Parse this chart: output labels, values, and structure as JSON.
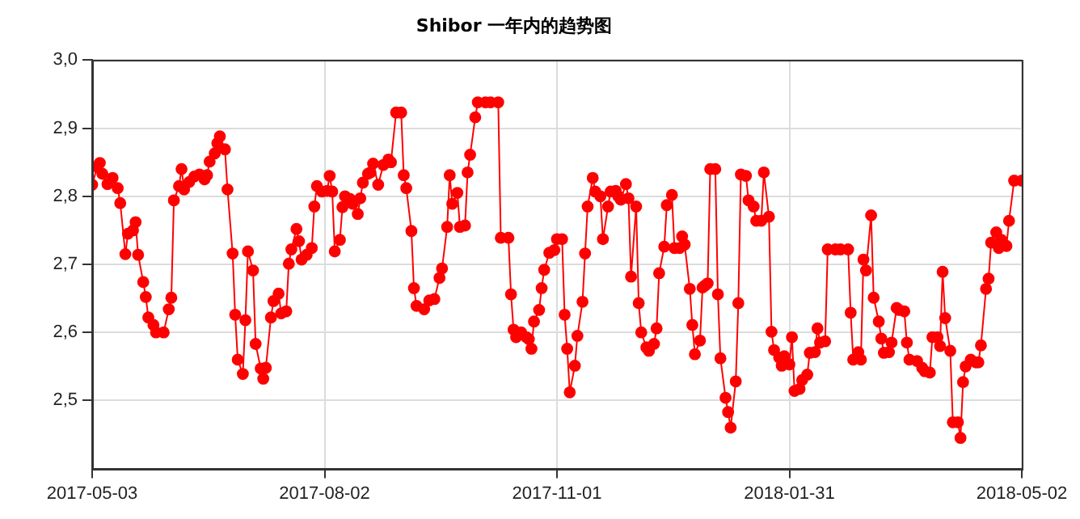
{
  "chart_data": {
    "type": "line",
    "title": "Shibor 一年内的趋势图",
    "x": [
      "2017-05-03",
      "2017-05-05",
      "2017-05-06",
      "2017-05-07",
      "2017-05-09",
      "2017-05-11",
      "2017-05-13",
      "2017-05-14",
      "2017-05-16",
      "2017-05-17",
      "2017-05-19",
      "2017-05-20",
      "2017-05-21",
      "2017-05-23",
      "2017-05-24",
      "2017-05-25",
      "2017-05-27",
      "2017-05-28",
      "2017-05-31",
      "2017-06-02",
      "2017-06-03",
      "2017-06-04",
      "2017-06-06",
      "2017-06-07",
      "2017-06-08",
      "2017-06-10",
      "2017-06-12",
      "2017-06-14",
      "2017-06-16",
      "2017-06-17",
      "2017-06-18",
      "2017-06-20",
      "2017-06-21",
      "2017-06-22",
      "2017-06-24",
      "2017-06-25",
      "2017-06-27",
      "2017-06-28",
      "2017-06-29",
      "2017-07-01",
      "2017-07-02",
      "2017-07-03",
      "2017-07-05",
      "2017-07-06",
      "2017-07-08",
      "2017-07-09",
      "2017-07-10",
      "2017-07-12",
      "2017-07-13",
      "2017-07-15",
      "2017-07-16",
      "2017-07-18",
      "2017-07-19",
      "2017-07-20",
      "2017-07-22",
      "2017-07-23",
      "2017-07-24",
      "2017-07-26",
      "2017-07-28",
      "2017-07-29",
      "2017-07-30",
      "2017-08-01",
      "2017-08-03",
      "2017-08-04",
      "2017-08-05",
      "2017-08-06",
      "2017-08-08",
      "2017-08-09",
      "2017-08-10",
      "2017-08-12",
      "2017-08-13",
      "2017-08-15",
      "2017-08-16",
      "2017-08-17",
      "2017-08-19",
      "2017-08-20",
      "2017-08-21",
      "2017-08-23",
      "2017-08-25",
      "2017-08-27",
      "2017-08-28",
      "2017-08-30",
      "2017-09-01",
      "2017-09-02",
      "2017-09-03",
      "2017-09-05",
      "2017-09-06",
      "2017-09-07",
      "2017-09-10",
      "2017-09-12",
      "2017-09-14",
      "2017-09-16",
      "2017-09-17",
      "2017-09-19",
      "2017-09-20",
      "2017-09-21",
      "2017-09-23",
      "2017-09-24",
      "2017-09-26",
      "2017-09-27",
      "2017-09-28",
      "2017-09-30",
      "2017-10-01",
      "2017-10-04",
      "2017-10-06",
      "2017-10-09",
      "2017-10-10",
      "2017-10-13",
      "2017-10-14",
      "2017-10-15",
      "2017-10-16",
      "2017-10-18",
      "2017-10-20",
      "2017-10-21",
      "2017-10-22",
      "2017-10-23",
      "2017-10-25",
      "2017-10-26",
      "2017-10-27",
      "2017-10-29",
      "2017-10-31",
      "2017-11-01",
      "2017-11-03",
      "2017-11-04",
      "2017-11-05",
      "2017-11-06",
      "2017-11-08",
      "2017-11-09",
      "2017-11-11",
      "2017-11-12",
      "2017-11-13",
      "2017-11-15",
      "2017-11-16",
      "2017-11-18",
      "2017-11-19",
      "2017-11-21",
      "2017-11-22",
      "2017-11-24",
      "2017-11-25",
      "2017-11-26",
      "2017-11-28",
      "2017-11-29",
      "2017-11-30",
      "2017-12-02",
      "2017-12-03",
      "2017-12-04",
      "2017-12-06",
      "2017-12-07",
      "2017-12-09",
      "2017-12-10",
      "2017-12-11",
      "2017-12-13",
      "2017-12-14",
      "2017-12-16",
      "2017-12-17",
      "2017-12-19",
      "2017-12-20",
      "2017-12-21",
      "2017-12-23",
      "2017-12-24",
      "2017-12-25",
      "2017-12-27",
      "2017-12-28",
      "2017-12-29",
      "2017-12-30",
      "2017-12-31",
      "2018-01-02",
      "2018-01-03",
      "2018-01-04",
      "2018-01-06",
      "2018-01-07",
      "2018-01-08",
      "2018-01-10",
      "2018-01-11",
      "2018-01-12",
      "2018-01-14",
      "2018-01-15",
      "2018-01-17",
      "2018-01-18",
      "2018-01-20",
      "2018-01-21",
      "2018-01-23",
      "2018-01-24",
      "2018-01-25",
      "2018-01-27",
      "2018-01-28",
      "2018-01-29",
      "2018-01-31",
      "2018-02-01",
      "2018-02-02",
      "2018-02-04",
      "2018-02-05",
      "2018-02-07",
      "2018-02-08",
      "2018-02-10",
      "2018-02-11",
      "2018-02-12",
      "2018-02-14",
      "2018-02-15",
      "2018-02-18",
      "2018-02-20",
      "2018-02-23",
      "2018-02-24",
      "2018-02-25",
      "2018-02-27",
      "2018-02-28",
      "2018-03-01",
      "2018-03-02",
      "2018-03-04",
      "2018-03-05",
      "2018-03-07",
      "2018-03-08",
      "2018-03-09",
      "2018-03-11",
      "2018-03-12",
      "2018-03-14",
      "2018-03-15",
      "2018-03-17",
      "2018-03-18",
      "2018-03-19",
      "2018-03-22",
      "2018-03-24",
      "2018-03-25",
      "2018-03-27",
      "2018-03-28",
      "2018-03-30",
      "2018-03-31",
      "2018-04-01",
      "2018-04-02",
      "2018-04-04",
      "2018-04-05",
      "2018-04-07",
      "2018-04-08",
      "2018-04-09",
      "2018-04-10",
      "2018-04-12",
      "2018-04-14",
      "2018-04-15",
      "2018-04-16",
      "2018-04-18",
      "2018-04-19",
      "2018-04-20",
      "2018-04-22",
      "2018-04-23",
      "2018-04-24",
      "2018-04-26",
      "2018-04-27",
      "2018-04-29",
      "2018-05-02"
    ],
    "series": [
      {
        "color": "#ff0000",
        "values": [
          2.817,
          2.843,
          2.849,
          2.833,
          2.818,
          2.827,
          2.812,
          2.79,
          2.715,
          2.745,
          2.75,
          2.762,
          2.714,
          2.674,
          2.652,
          2.622,
          2.611,
          2.6,
          2.6,
          2.634,
          2.651,
          2.794,
          2.815,
          2.84,
          2.81,
          2.821,
          2.829,
          2.832,
          2.825,
          2.831,
          2.851,
          2.863,
          2.878,
          2.888,
          2.869,
          2.81,
          2.716,
          2.626,
          2.56,
          2.539,
          2.618,
          2.719,
          2.691,
          2.583,
          2.547,
          2.532,
          2.548,
          2.622,
          2.646,
          2.657,
          2.628,
          2.631,
          2.701,
          2.722,
          2.752,
          2.734,
          2.707,
          2.714,
          2.724,
          2.785,
          2.815,
          2.807,
          2.808,
          2.83,
          2.807,
          2.719,
          2.736,
          2.784,
          2.8,
          2.796,
          2.789,
          2.774,
          2.797,
          2.82,
          2.833,
          2.835,
          2.848,
          2.817,
          2.846,
          2.854,
          2.85,
          2.923,
          2.923,
          2.831,
          2.812,
          2.749,
          2.665,
          2.639,
          2.634,
          2.647,
          2.649,
          2.68,
          2.694,
          2.755,
          2.831,
          2.789,
          2.805,
          2.755,
          2.757,
          2.835,
          2.861,
          2.916,
          2.938,
          2.938,
          2.938,
          2.938,
          2.739,
          2.739,
          2.656,
          2.604,
          2.593,
          2.6,
          2.593,
          2.59,
          2.576,
          2.616,
          2.633,
          2.665,
          2.692,
          2.717,
          2.721,
          2.737,
          2.737,
          2.626,
          2.576,
          2.512,
          2.551,
          2.595,
          2.645,
          2.716,
          2.785,
          2.827,
          2.807,
          2.8,
          2.737,
          2.785,
          2.807,
          2.808,
          2.8,
          2.795,
          2.818,
          2.797,
          2.682,
          2.785,
          2.643,
          2.6,
          2.578,
          2.573,
          2.583,
          2.606,
          2.687,
          2.726,
          2.787,
          2.802,
          2.724,
          2.724,
          2.741,
          2.729,
          2.664,
          2.611,
          2.568,
          2.588,
          2.666,
          2.669,
          2.672,
          2.84,
          2.84,
          2.656,
          2.562,
          2.504,
          2.483,
          2.46,
          2.528,
          2.643,
          2.832,
          2.83,
          2.794,
          2.785,
          2.764,
          2.764,
          2.835,
          2.77,
          2.601,
          2.574,
          2.563,
          2.551,
          2.565,
          2.553,
          2.593,
          2.514,
          2.517,
          2.53,
          2.538,
          2.57,
          2.571,
          2.606,
          2.585,
          2.587,
          2.722,
          2.722,
          2.722,
          2.722,
          2.629,
          2.56,
          2.571,
          2.56,
          2.707,
          2.691,
          2.772,
          2.651,
          2.616,
          2.591,
          2.57,
          2.571,
          2.585,
          2.636,
          2.633,
          2.631,
          2.585,
          2.56,
          2.558,
          2.548,
          2.543,
          2.541,
          2.593,
          2.593,
          2.58,
          2.689,
          2.621,
          2.573,
          2.468,
          2.468,
          2.445,
          2.527,
          2.55,
          2.56,
          2.556,
          2.556,
          2.581,
          2.664,
          2.679,
          2.732,
          2.747,
          2.724,
          2.736,
          2.727,
          2.764,
          2.823,
          2.823
        ]
      }
    ],
    "xlim": [
      "2017-05-03",
      "2018-05-02"
    ],
    "xticks": [
      "2017-05-03",
      "2017-08-02",
      "2017-11-01",
      "2018-01-31",
      "2018-05-02"
    ],
    "ylim": [
      2.4,
      3.0
    ],
    "yticks": [
      {
        "value": 2.5,
        "label": "2,5"
      },
      {
        "value": 2.6,
        "label": "2,6"
      },
      {
        "value": 2.7,
        "label": "2,7"
      },
      {
        "value": 2.8,
        "label": "2,8"
      },
      {
        "value": 2.9,
        "label": "2,9"
      },
      {
        "value": 3.0,
        "label": "3,0"
      }
    ],
    "grid": true,
    "legend": false,
    "marker": "circle",
    "line_style": "solid"
  }
}
